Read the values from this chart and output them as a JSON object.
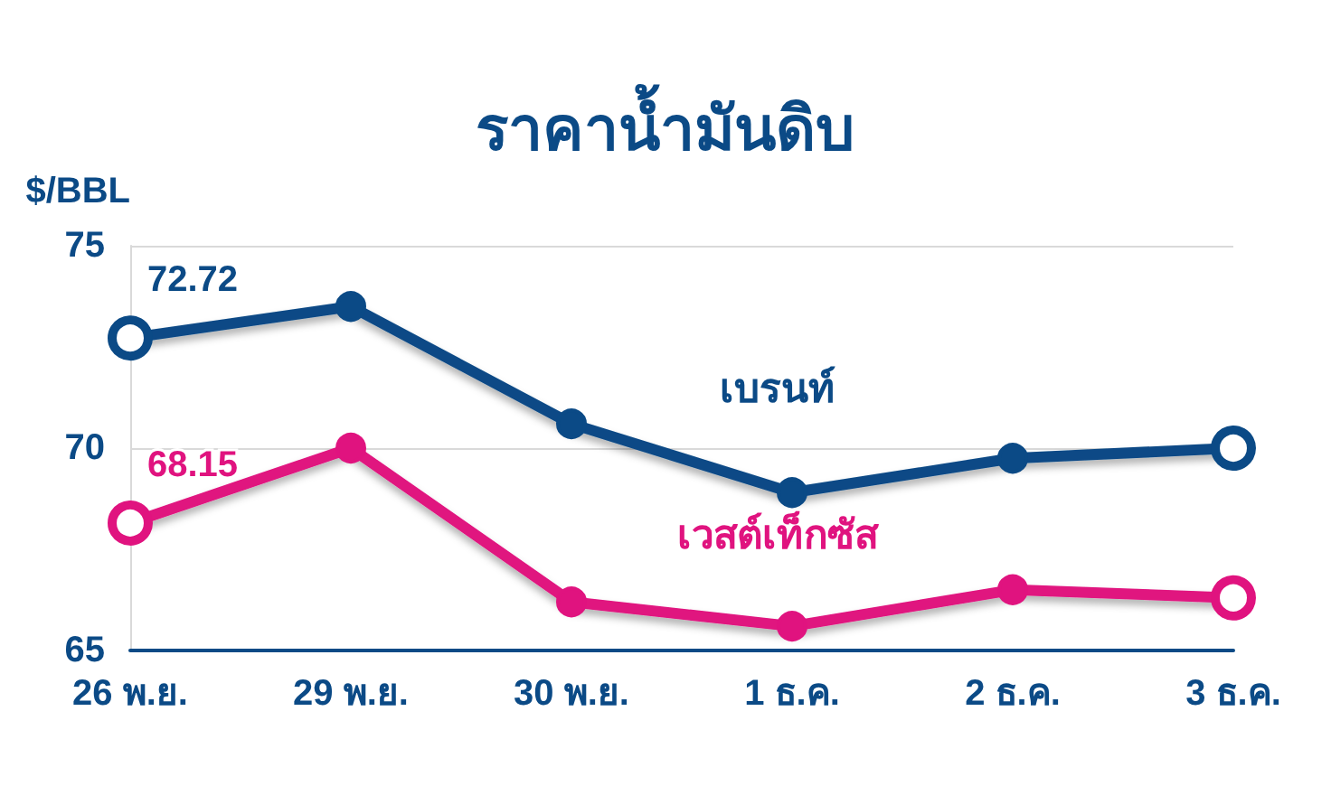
{
  "chart_data": {
    "type": "line",
    "title": "ราคาน้ำมันดิบ",
    "ylabel": "$/BBL",
    "categories": [
      "26 พ.ย.",
      "29 พ.ย.",
      "30 พ.ย.",
      "1 ธ.ค.",
      "2 ธ.ค.",
      "3 ธ.ค."
    ],
    "series": [
      {
        "name": "เบรนท์",
        "color": "#0b4a86",
        "values": [
          72.72,
          73.5,
          70.6,
          68.9,
          69.75,
          70.0
        ],
        "value_labels": [
          "72.72",
          null,
          null,
          null,
          null,
          null
        ]
      },
      {
        "name": "เวสต์เท็กซัส",
        "color": "#e0137f",
        "values": [
          68.15,
          70.0,
          66.2,
          65.6,
          66.5,
          66.3
        ],
        "value_labels": [
          "68.15",
          null,
          null,
          null,
          null,
          null
        ]
      }
    ],
    "ylim": [
      65,
      75
    ],
    "yticks": [
      65,
      70,
      75
    ],
    "grid": "y",
    "legend": false,
    "marker": "circle",
    "line_style": "solid"
  }
}
